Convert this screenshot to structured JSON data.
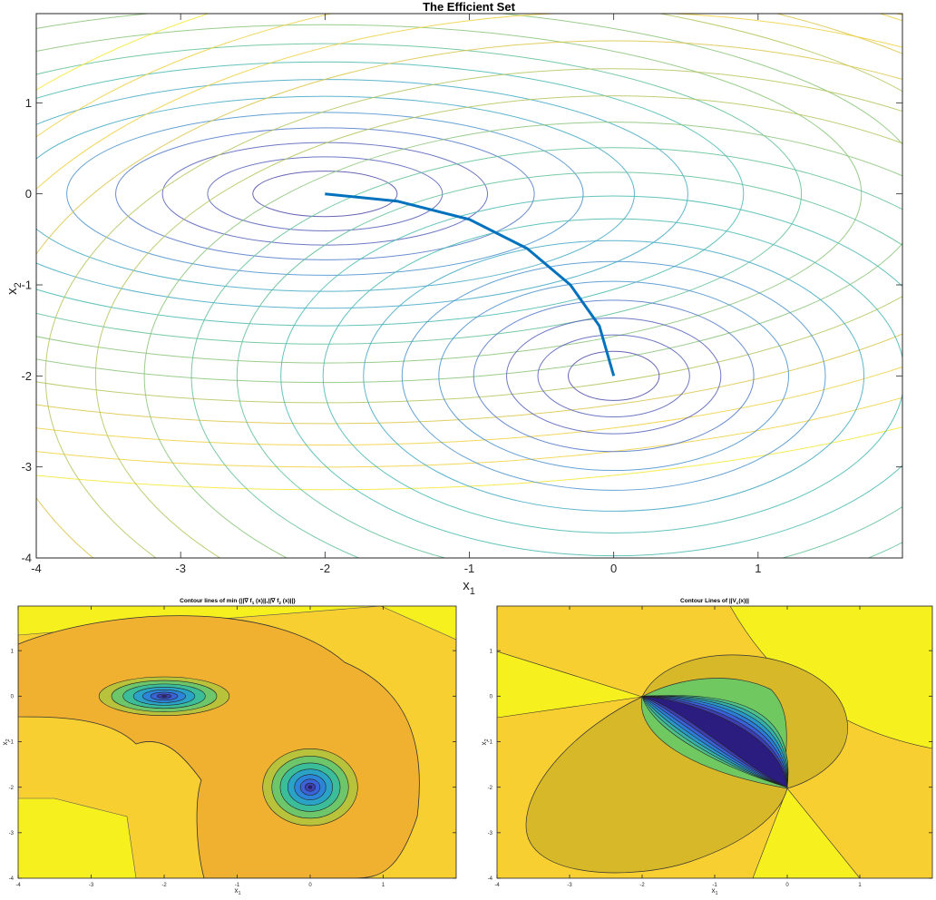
{
  "chart_data": [
    {
      "type": "contour",
      "title": "The Efficient Set",
      "xlabel_main": "x",
      "xlabel_sub": "1",
      "ylabel_main": "x",
      "ylabel_sub": "2",
      "xlim": [
        -4,
        2
      ],
      "ylim": [
        -4,
        1.98
      ],
      "xticks": [
        -4,
        -3,
        -2,
        -1,
        0,
        1
      ],
      "yticks": [
        -4,
        -3,
        -2,
        -1,
        0,
        1
      ],
      "xtick_labels": [
        "-4",
        "-3",
        "-2",
        "-1",
        "0",
        "1"
      ],
      "ytick_labels": [
        "-4",
        "-3",
        "-2",
        "-1",
        "0",
        "1"
      ],
      "series": [
        {
          "center": [
            -2,
            0
          ],
          "description": "elliptical contours of f1, minimum at (-2,0)"
        },
        {
          "center": [
            0,
            -2
          ],
          "description": "circular contours of f2, minimum at (0,-2)"
        }
      ],
      "efficient_set": {
        "color": "#0072BD",
        "x": [
          -2.0,
          -1.5,
          -1.0,
          -0.6,
          -0.3,
          -0.1,
          0.0
        ],
        "y": [
          0.0,
          -0.08,
          -0.28,
          -0.6,
          -1.0,
          -1.45,
          -2.0
        ]
      }
    },
    {
      "type": "filled-contour",
      "title_parts": [
        "Contour lines of min {||",
        "∇",
        " f",
        "1",
        " (x)||,||",
        "∇",
        " f",
        "2",
        " (x)||}"
      ],
      "xlabel_main": "x",
      "xlabel_sub": "1",
      "ylabel_main": "x",
      "ylabel_sub": "2",
      "xlim": [
        -4,
        2
      ],
      "ylim": [
        -4,
        1.98
      ],
      "xticks": [
        -4,
        -3,
        -2,
        -1,
        0,
        1
      ],
      "yticks": [
        -4,
        -3,
        -2,
        -1,
        0,
        1
      ],
      "xtick_labels": [
        "-4",
        "-3",
        "-2",
        "-1",
        "0",
        "1"
      ],
      "ytick_labels": [
        "-4",
        "-3",
        "-2",
        "-1",
        "0",
        "1"
      ],
      "minima": [
        [
          -2,
          0
        ],
        [
          0,
          -2
        ]
      ]
    },
    {
      "type": "filled-contour",
      "title_parts": [
        "Contour Lines of ||V",
        "c",
        "(x)||"
      ],
      "xlabel_main": "x",
      "xlabel_sub": "1",
      "ylabel_main": "x",
      "ylabel_sub": "2",
      "xlim": [
        -4,
        2
      ],
      "ylim": [
        -4,
        1.98
      ],
      "xticks": [
        -4,
        -3,
        -2,
        -1,
        0,
        1
      ],
      "yticks": [
        -4,
        -3,
        -2,
        -1,
        0,
        1
      ],
      "xtick_labels": [
        "-4",
        "-3",
        "-2",
        "-1",
        "0",
        "1"
      ],
      "ytick_labels": [
        "-4",
        "-3",
        "-2",
        "-1",
        "0",
        "1"
      ],
      "singular_points": [
        [
          -2,
          0
        ],
        [
          0,
          -2
        ]
      ]
    }
  ]
}
